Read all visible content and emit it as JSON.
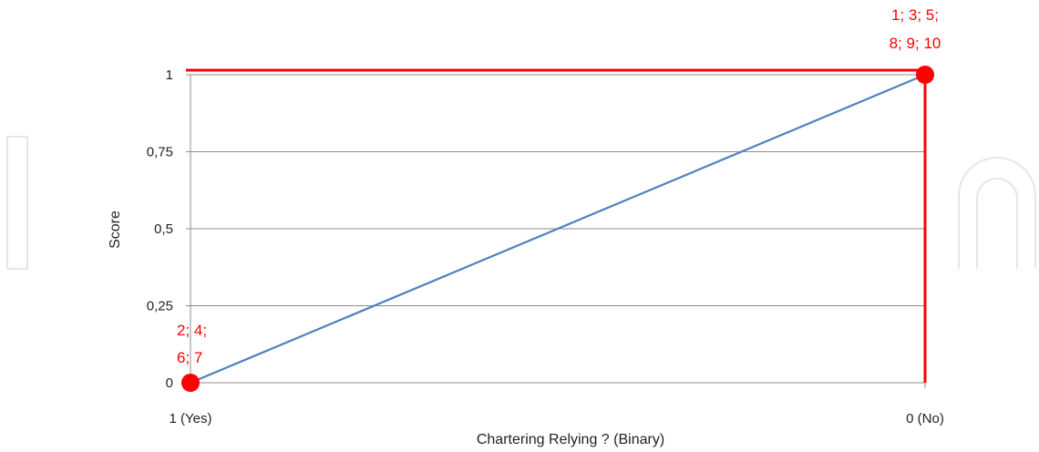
{
  "chart_data": {
    "type": "line",
    "title": "",
    "xlabel": "Chartering Relying ? (Binary)",
    "ylabel": "Score",
    "categories": [
      "1 (Yes)",
      "0 (No)"
    ],
    "series": [
      {
        "values": [
          0,
          1
        ]
      }
    ],
    "ylim": [
      0,
      1
    ],
    "yticks": [
      0,
      0.25,
      0.5,
      0.75,
      1
    ],
    "ytick_labels": [
      "0",
      "0,25",
      "0,5",
      "0,75",
      "1"
    ],
    "grid": true,
    "points_highlighted": [
      {
        "x": "1 (Yes)",
        "y": 0,
        "label_lines": [
          "2; 4;",
          "6; 7"
        ]
      },
      {
        "x": "0 (No)",
        "y": 1,
        "label_lines": [
          "1; 3; 5;",
          "8; 9; 10"
        ]
      }
    ],
    "colors": {
      "line": "#4f81bd",
      "highlight": "#ff0000",
      "grid": "#8c8c8c",
      "watermark": "#e6e6e6"
    }
  }
}
